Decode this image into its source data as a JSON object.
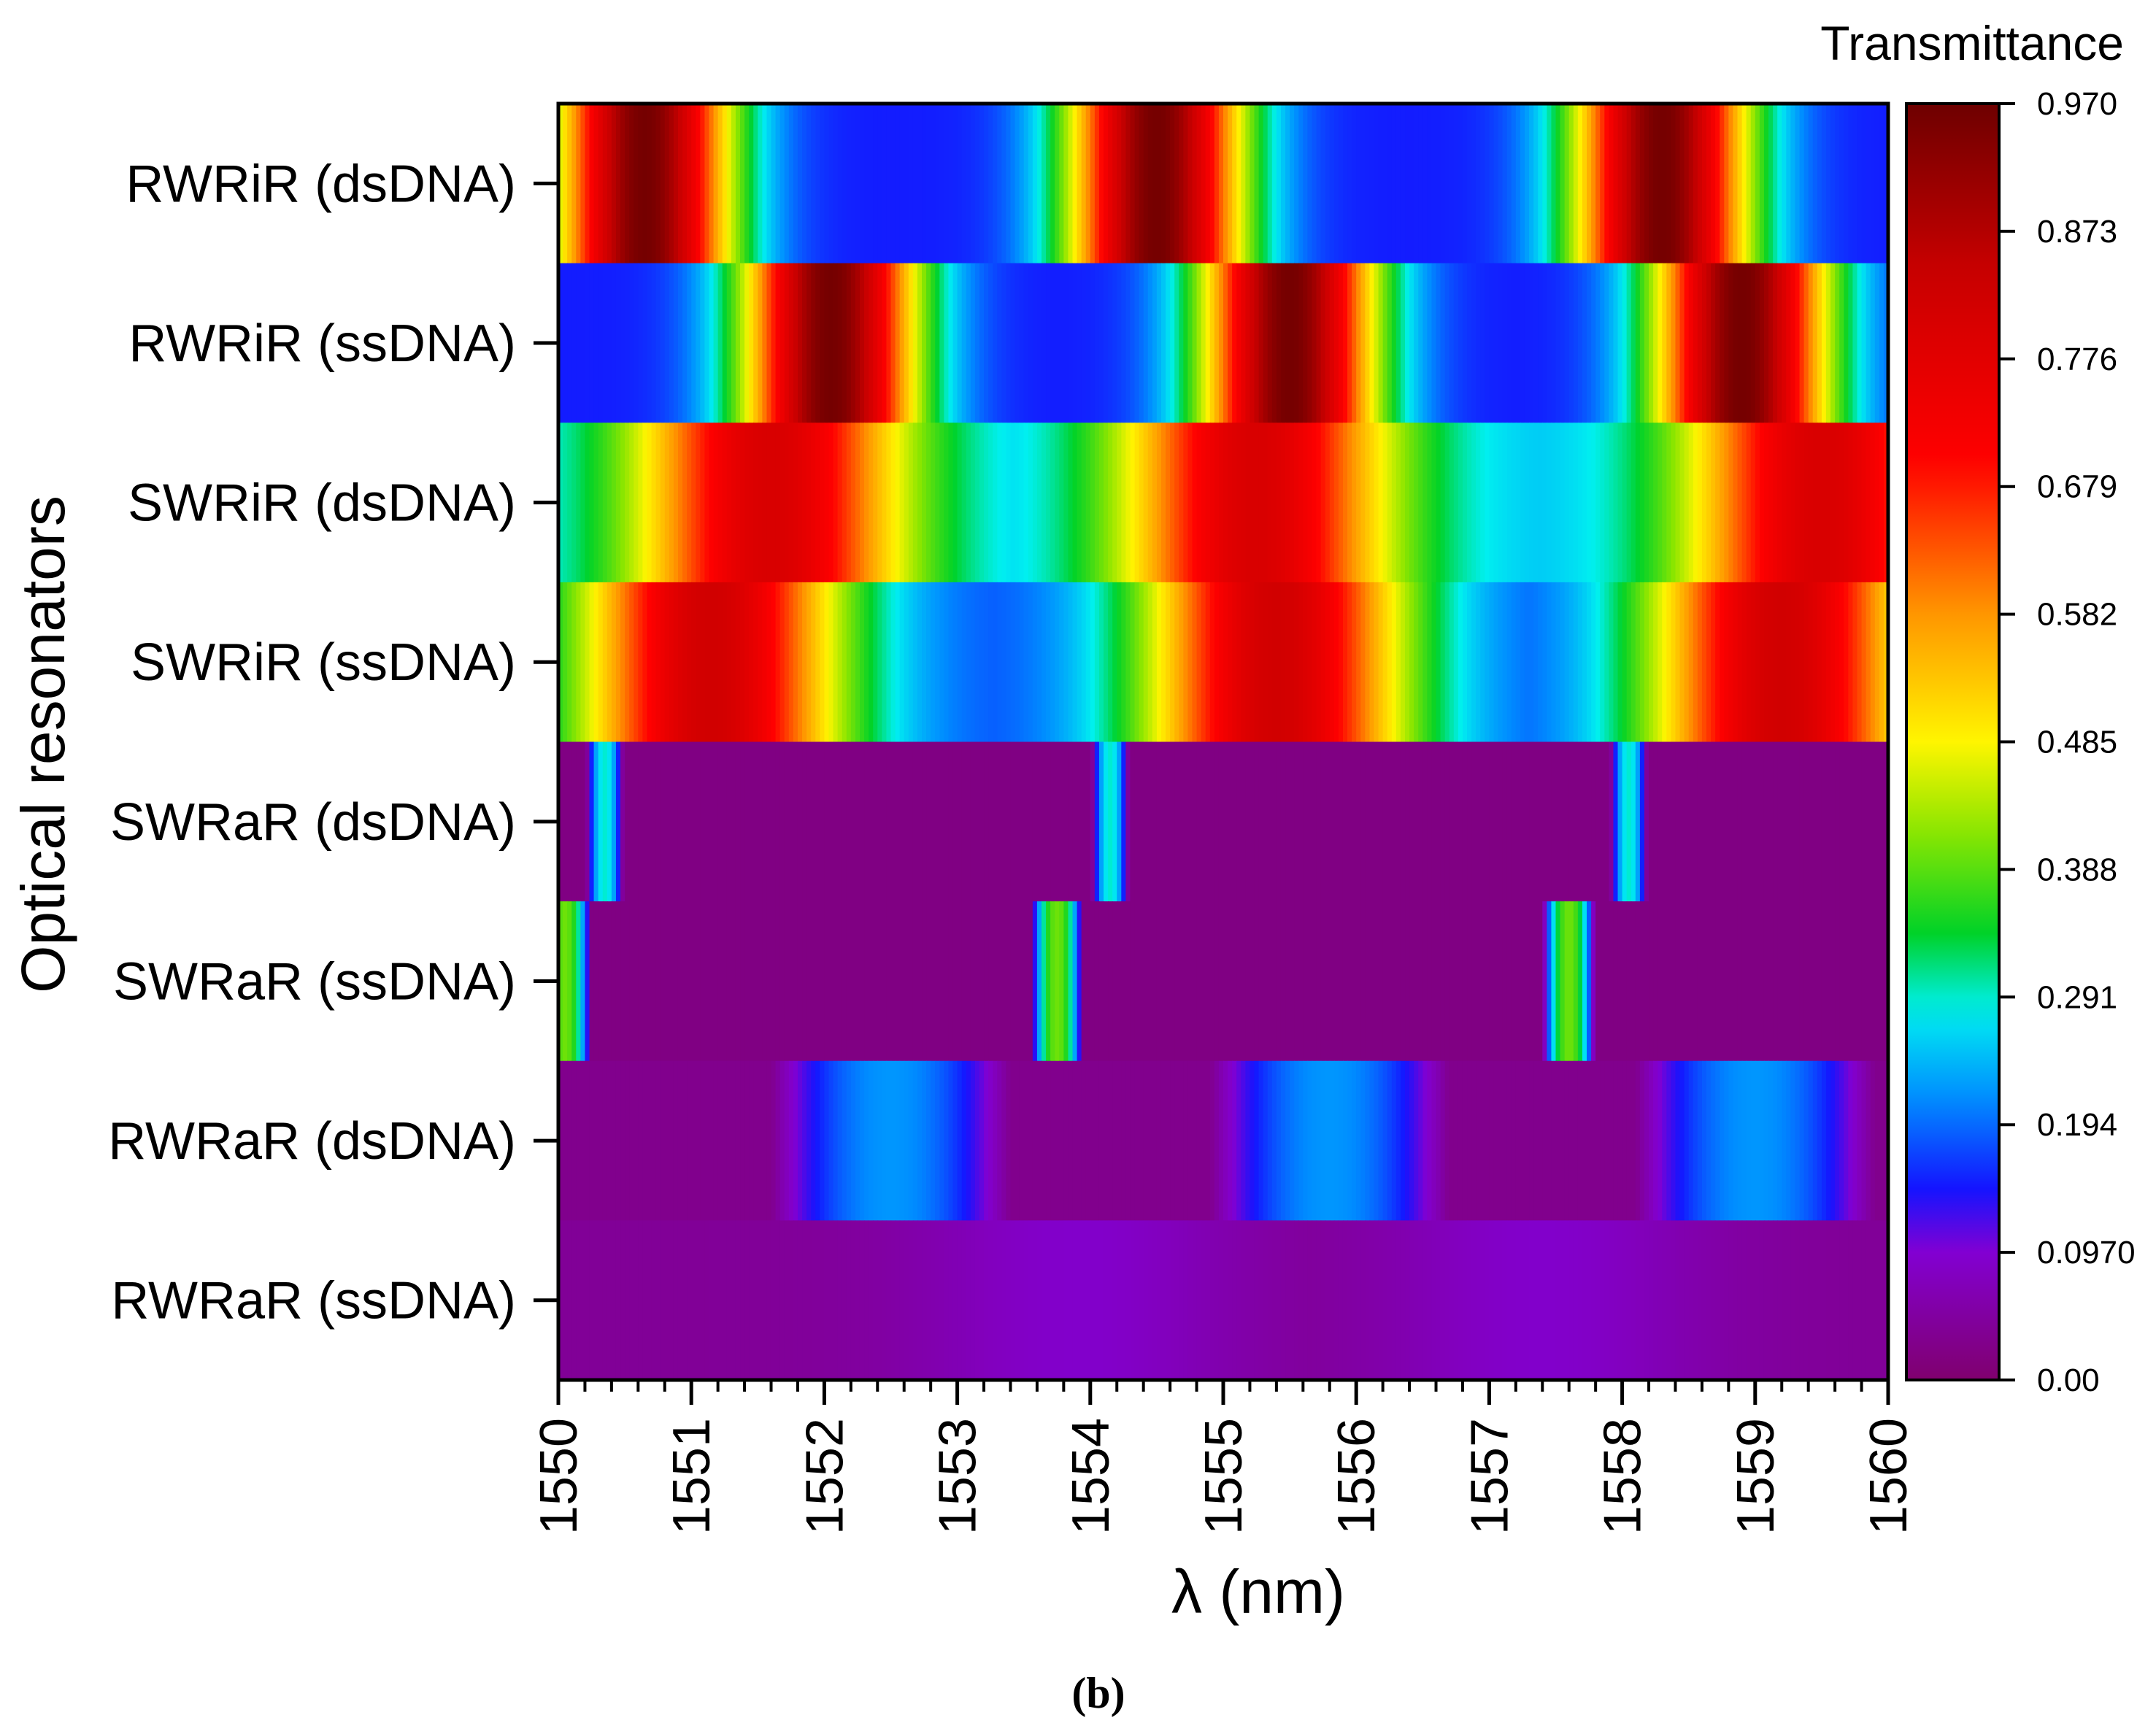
{
  "chart_data": {
    "type": "heatmap",
    "panel_label": "(b)",
    "xlabel": "λ (nm)",
    "ylabel": "Optical resonators",
    "xlim": [
      1550,
      1560
    ],
    "x_ticks": [
      "1550",
      "1551",
      "1552",
      "1553",
      "1554",
      "1555",
      "1556",
      "1557",
      "1558",
      "1559",
      "1560"
    ],
    "rows": [
      "RWRiR (dsDNA)",
      "RWRiR (ssDNA)",
      "SWRiR (dsDNA)",
      "SWRiR (ssDNA)",
      "SWRaR (dsDNA)",
      "SWRaR (ssDNA)",
      "RWRaR (dsDNA)",
      "RWRaR (ssDNA)"
    ],
    "colorbar": {
      "title": "Transmittance",
      "min": 0.0,
      "max": 0.97,
      "tick_labels": [
        "0.00",
        "0.0970",
        "0.194",
        "0.291",
        "0.388",
        "0.485",
        "0.582",
        "0.679",
        "0.776",
        "0.873",
        "0.970"
      ]
    },
    "series": [
      {
        "name": "RWRiR (dsDNA)",
        "type": "periodic",
        "min": 0.15,
        "max": 0.96,
        "peaks_nm": [
          1550.65,
          1554.5,
          1558.3
        ],
        "fwhm_nm": 1.1
      },
      {
        "name": "RWRiR (ssDNA)",
        "type": "periodic",
        "min": 0.15,
        "max": 0.96,
        "peaks_nm": [
          1552.05,
          1555.5,
          1558.9
        ],
        "fwhm_nm": 1.1
      },
      {
        "name": "SWRiR (dsDNA)",
        "type": "periodic",
        "min": 0.25,
        "max": 0.8,
        "peaks_nm": [
          1551.6,
          1555.25,
          1559.5
        ],
        "fwhm_nm": 1.7
      },
      {
        "name": "SWRiR (ssDNA)",
        "type": "periodic",
        "min": 0.18,
        "max": 0.82,
        "peaks_nm": [
          1551.15,
          1555.4,
          1559.2
        ],
        "fwhm_nm": 1.7
      },
      {
        "name": "SWRaR (dsDNA)",
        "type": "dips",
        "base": 0.02,
        "dip_nm": [
          1550.35,
          1554.15,
          1558.05
        ],
        "dip_depth": 0.27,
        "dip_width_nm": 0.14
      },
      {
        "name": "SWRaR (ssDNA)",
        "type": "dips",
        "base": 0.02,
        "dip_nm": [
          1550.05,
          1553.75,
          1557.6
        ],
        "dip_depth": 0.38,
        "dip_width_nm": 0.2
      },
      {
        "name": "RWRaR (dsDNA)",
        "type": "dips",
        "base": 0.03,
        "dip_nm": [
          1552.5,
          1555.8,
          1559.0
        ],
        "dip_depth": 0.19,
        "dip_width_nm": 0.9
      },
      {
        "name": "RWRaR (ssDNA)",
        "type": "periodic",
        "min": 0.04,
        "max": 0.09,
        "peaks_nm": [
          1553.9,
          1557.4
        ],
        "fwhm_nm": 2.0
      }
    ]
  }
}
